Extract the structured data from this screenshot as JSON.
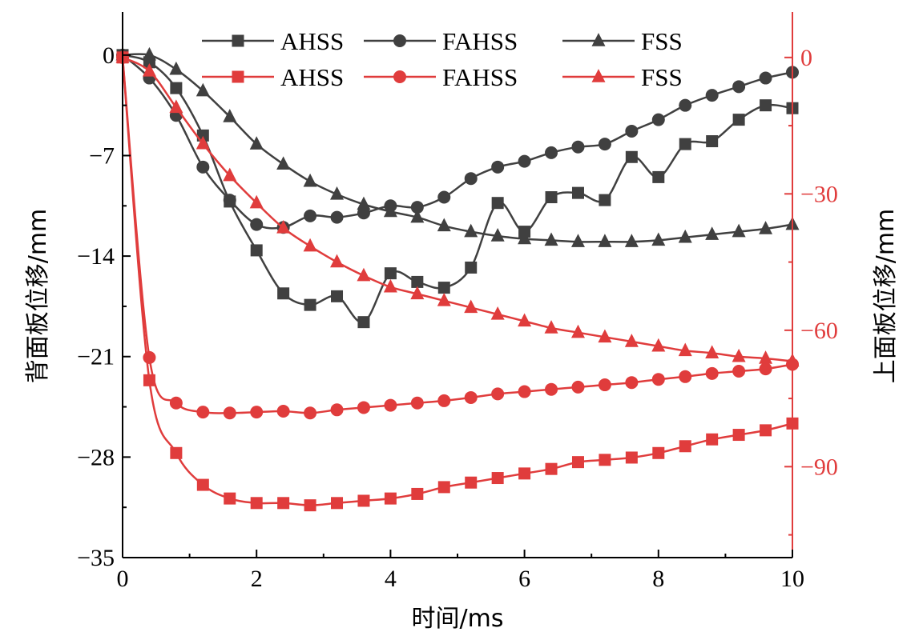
{
  "chart_data": {
    "type": "line",
    "xlabel": "时间/ms",
    "ylabel_left": "背面板位移/mm",
    "ylabel_right": "上面板位移/mm",
    "xlim": [
      0,
      10
    ],
    "ylim_left": [
      -35,
      3
    ],
    "ylim_right": [
      -110,
      10
    ],
    "x_ticks": [
      "0",
      "2",
      "4",
      "6",
      "8",
      "10"
    ],
    "y_left_ticks": [
      "0",
      "−7",
      "−14",
      "−21",
      "−28",
      "−35"
    ],
    "y_right_ticks": [
      "0",
      "−30",
      "−60",
      "−90"
    ],
    "grid": false,
    "legend_position": "top",
    "colors": {
      "back": "#404040",
      "top": "#e03c3c"
    },
    "x": [
      0,
      0.4,
      0.8,
      1.2,
      1.6,
      2.0,
      2.4,
      2.8,
      3.2,
      3.6,
      4.0,
      4.4,
      4.8,
      5.2,
      5.6,
      6.0,
      6.4,
      6.8,
      7.2,
      7.6,
      8.0,
      8.4,
      8.8,
      9.2,
      9.6,
      10.0
    ],
    "series": [
      {
        "name": "AHSS",
        "axis": "left",
        "color": "#404040",
        "marker": "square",
        "values": [
          0,
          -0.5,
          -2.3,
          -5.6,
          -10.2,
          -13.6,
          -16.6,
          -17.4,
          -16.8,
          -18.6,
          -15.2,
          -15.8,
          -16.2,
          -14.8,
          -10.3,
          -12.3,
          -9.9,
          -9.6,
          -10.1,
          -7.1,
          -8.5,
          -6.2,
          -6.0,
          -4.5,
          -3.5,
          -3.7
        ]
      },
      {
        "name": "FAHSS",
        "axis": "left",
        "color": "#404040",
        "marker": "circle",
        "values": [
          0,
          -1.6,
          -4.2,
          -7.8,
          -10.1,
          -11.8,
          -12.0,
          -11.2,
          -11.3,
          -11.0,
          -10.5,
          -10.6,
          -9.9,
          -8.6,
          -7.8,
          -7.4,
          -6.8,
          -6.4,
          -6.2,
          -5.3,
          -4.5,
          -3.5,
          -2.8,
          -2.2,
          -1.6,
          -1.2
        ]
      },
      {
        "name": "FSS",
        "axis": "left",
        "color": "#404040",
        "marker": "triangle",
        "values": [
          0,
          0,
          -1.0,
          -2.5,
          -4.3,
          -6.2,
          -7.6,
          -8.8,
          -9.7,
          -10.4,
          -10.9,
          -11.3,
          -11.9,
          -12.3,
          -12.6,
          -12.8,
          -12.9,
          -13.0,
          -13.0,
          -13.0,
          -12.9,
          -12.7,
          -12.5,
          -12.3,
          -12.1,
          -11.8
        ]
      },
      {
        "name": "AHSS",
        "axis": "right",
        "color": "#e03c3c",
        "marker": "square",
        "values": [
          0,
          -71,
          -87,
          -94,
          -97,
          -98,
          -98,
          -98.5,
          -98,
          -97.5,
          -97,
          -96,
          -94.5,
          -93.5,
          -92.5,
          -91.5,
          -90.5,
          -89,
          -88.5,
          -88,
          -87,
          -85.5,
          -84,
          -83,
          -82,
          -80.5
        ]
      },
      {
        "name": "FAHSS",
        "axis": "right",
        "color": "#e03c3c",
        "marker": "circle",
        "values": [
          0,
          -66,
          -76,
          -78,
          -78.2,
          -78,
          -77.8,
          -78.2,
          -77.5,
          -77,
          -76.5,
          -76,
          -75.5,
          -74.8,
          -74,
          -73.5,
          -73,
          -72.5,
          -72,
          -71.5,
          -70.8,
          -70.2,
          -69.5,
          -69,
          -68.5,
          -67.5
        ]
      },
      {
        "name": "FSS",
        "axis": "right",
        "color": "#e03c3c",
        "marker": "triangle",
        "values": [
          0,
          -3,
          -11,
          -19,
          -26,
          -32,
          -37.5,
          -41.5,
          -45,
          -48,
          -50.5,
          -52,
          -53.5,
          -55,
          -56.5,
          -58,
          -59.5,
          -60.5,
          -61.5,
          -62.5,
          -63.5,
          -64.5,
          -65,
          -65.8,
          -66.2,
          -66.8
        ]
      }
    ]
  }
}
